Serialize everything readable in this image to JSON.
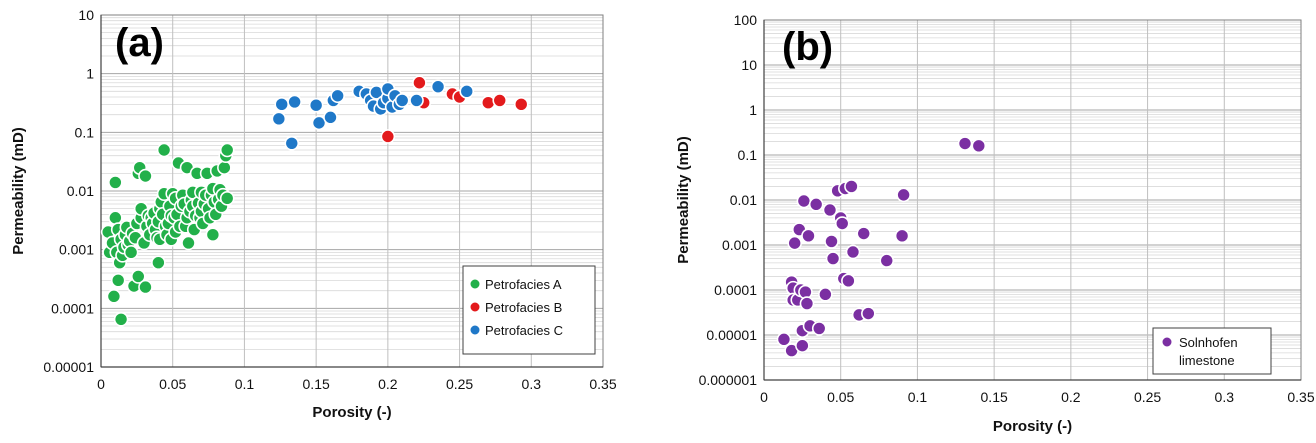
{
  "chart_data": [
    {
      "type": "scatter",
      "panel_label": "(a)",
      "xlabel": "Porosity (-)",
      "ylabel": "Permeability (mD)",
      "xlim": [
        0,
        0.35
      ],
      "ylim": [
        1e-05,
        10
      ],
      "yscale": "log",
      "grid": true,
      "legend_placement": "bottom-right",
      "xticks": [
        "0",
        "0.05",
        "0.1",
        "0.15",
        "0.2",
        "0.25",
        "0.3",
        "0.35"
      ],
      "yticks": [
        "0.00001",
        "0.0001",
        "0.001",
        "0.01",
        "0.1",
        "1",
        "10"
      ],
      "series": [
        {
          "name": "Petrofacies A",
          "color": "#22b04a",
          "points": [
            [
              0.005,
              0.002
            ],
            [
              0.006,
              0.0009
            ],
            [
              0.008,
              0.0013
            ],
            [
              0.009,
              0.00016
            ],
            [
              0.01,
              0.0035
            ],
            [
              0.01,
              0.014
            ],
            [
              0.011,
              0.0009
            ],
            [
              0.012,
              0.0003
            ],
            [
              0.012,
              0.0022
            ],
            [
              0.013,
              0.0006
            ],
            [
              0.014,
              0.0015
            ],
            [
              0.014,
              6.5e-05
            ],
            [
              0.015,
              0.0008
            ],
            [
              0.016,
              0.0011
            ],
            [
              0.017,
              0.0018
            ],
            [
              0.018,
              0.0024
            ],
            [
              0.019,
              0.0012
            ],
            [
              0.02,
              0.0014
            ],
            [
              0.021,
              0.0009
            ],
            [
              0.022,
              0.0019
            ],
            [
              0.023,
              0.00024
            ],
            [
              0.024,
              0.0016
            ],
            [
              0.025,
              0.0028
            ],
            [
              0.026,
              0.02
            ],
            [
              0.026,
              0.00035
            ],
            [
              0.027,
              0.025
            ],
            [
              0.028,
              0.0035
            ],
            [
              0.028,
              0.005
            ],
            [
              0.03,
              0.0013
            ],
            [
              0.031,
              0.018
            ],
            [
              0.031,
              0.00023
            ],
            [
              0.032,
              0.0025
            ],
            [
              0.033,
              0.0038
            ],
            [
              0.034,
              0.0018
            ],
            [
              0.035,
              0.0035
            ],
            [
              0.036,
              0.0028
            ],
            [
              0.037,
              0.0042
            ],
            [
              0.038,
              0.0022
            ],
            [
              0.039,
              0.0016
            ],
            [
              0.04,
              0.0006
            ],
            [
              0.04,
              0.003
            ],
            [
              0.041,
              0.005
            ],
            [
              0.041,
              0.0015
            ],
            [
              0.042,
              0.0065
            ],
            [
              0.043,
              0.004
            ],
            [
              0.044,
              0.009
            ],
            [
              0.044,
              0.05
            ],
            [
              0.045,
              0.0025
            ],
            [
              0.046,
              0.0018
            ],
            [
              0.047,
              0.0028
            ],
            [
              0.048,
              0.0055
            ],
            [
              0.049,
              0.0038
            ],
            [
              0.049,
              0.0015
            ],
            [
              0.05,
              0.009
            ],
            [
              0.051,
              0.0035
            ],
            [
              0.052,
              0.002
            ],
            [
              0.052,
              0.0075
            ],
            [
              0.053,
              0.004
            ],
            [
              0.054,
              0.03
            ],
            [
              0.055,
              0.0025
            ],
            [
              0.056,
              0.0055
            ],
            [
              0.057,
              0.0085
            ],
            [
              0.058,
              0.006
            ],
            [
              0.059,
              0.0025
            ],
            [
              0.06,
              0.0035
            ],
            [
              0.06,
              0.025
            ],
            [
              0.061,
              0.0013
            ],
            [
              0.062,
              0.0045
            ],
            [
              0.063,
              0.007
            ],
            [
              0.064,
              0.0055
            ],
            [
              0.064,
              0.0095
            ],
            [
              0.065,
              0.0022
            ],
            [
              0.066,
              0.0038
            ],
            [
              0.067,
              0.02
            ],
            [
              0.068,
              0.0062
            ],
            [
              0.069,
              0.0035
            ],
            [
              0.07,
              0.0095
            ],
            [
              0.07,
              0.0045
            ],
            [
              0.071,
              0.0028
            ],
            [
              0.072,
              0.006
            ],
            [
              0.073,
              0.0085
            ],
            [
              0.074,
              0.02
            ],
            [
              0.075,
              0.005
            ],
            [
              0.076,
              0.0035
            ],
            [
              0.077,
              0.0085
            ],
            [
              0.078,
              0.0018
            ],
            [
              0.078,
              0.011
            ],
            [
              0.079,
              0.0065
            ],
            [
              0.08,
              0.004
            ],
            [
              0.081,
              0.022
            ],
            [
              0.082,
              0.0072
            ],
            [
              0.083,
              0.0105
            ],
            [
              0.084,
              0.0055
            ],
            [
              0.085,
              0.0085
            ],
            [
              0.086,
              0.025
            ],
            [
              0.087,
              0.04
            ],
            [
              0.088,
              0.05
            ],
            [
              0.088,
              0.0075
            ]
          ]
        },
        {
          "name": "Petrofacies B",
          "color": "#e31a1c",
          "points": [
            [
              0.2,
              0.085
            ],
            [
              0.222,
              0.7
            ],
            [
              0.225,
              0.32
            ],
            [
              0.245,
              0.45
            ],
            [
              0.25,
              0.4
            ],
            [
              0.255,
              0.5
            ],
            [
              0.27,
              0.32
            ],
            [
              0.278,
              0.35
            ],
            [
              0.293,
              0.3
            ]
          ]
        },
        {
          "name": "Petrofacies C",
          "color": "#1f78c8",
          "points": [
            [
              0.124,
              0.17
            ],
            [
              0.126,
              0.3
            ],
            [
              0.133,
              0.065
            ],
            [
              0.135,
              0.33
            ],
            [
              0.15,
              0.29
            ],
            [
              0.152,
              0.145
            ],
            [
              0.16,
              0.18
            ],
            [
              0.162,
              0.35
            ],
            [
              0.165,
              0.42
            ],
            [
              0.18,
              0.5
            ],
            [
              0.185,
              0.45
            ],
            [
              0.188,
              0.35
            ],
            [
              0.19,
              0.28
            ],
            [
              0.192,
              0.48
            ],
            [
              0.195,
              0.25
            ],
            [
              0.197,
              0.32
            ],
            [
              0.2,
              0.38
            ],
            [
              0.2,
              0.55
            ],
            [
              0.203,
              0.27
            ],
            [
              0.205,
              0.42
            ],
            [
              0.208,
              0.3
            ],
            [
              0.21,
              0.35
            ],
            [
              0.22,
              0.35
            ],
            [
              0.235,
              0.6
            ],
            [
              0.255,
              0.5
            ]
          ]
        }
      ]
    },
    {
      "type": "scatter",
      "panel_label": "(b)",
      "xlabel": "Porosity (-)",
      "ylabel": "Permeability (mD)",
      "xlim": [
        0,
        0.35
      ],
      "ylim": [
        1e-06,
        100
      ],
      "yscale": "log",
      "grid": true,
      "legend_placement": "bottom-right",
      "xticks": [
        "0",
        "0.05",
        "0.1",
        "0.15",
        "0.2",
        "0.25",
        "0.3",
        "0.35"
      ],
      "yticks": [
        "0.000001",
        "0.00001",
        "0.0001",
        "0.001",
        "0.01",
        "0.1",
        "1",
        "10",
        "100"
      ],
      "series": [
        {
          "name": "Solnhofen limestone",
          "legend_lines": [
            "Solnhofen",
            "limestone"
          ],
          "color": "#7b2fa2",
          "points": [
            [
              0.013,
              8e-06
            ],
            [
              0.018,
              4.5e-06
            ],
            [
              0.018,
              0.00015
            ],
            [
              0.019,
              0.00011
            ],
            [
              0.019,
              6e-05
            ],
            [
              0.02,
              0.0011
            ],
            [
              0.022,
              6e-05
            ],
            [
              0.023,
              0.0022
            ],
            [
              0.024,
              0.0001
            ],
            [
              0.025,
              1.25e-05
            ],
            [
              0.025,
              5.8e-06
            ],
            [
              0.026,
              0.0095
            ],
            [
              0.027,
              9e-05
            ],
            [
              0.028,
              5e-05
            ],
            [
              0.029,
              0.0016
            ],
            [
              0.03,
              1.6e-05
            ],
            [
              0.034,
              0.008
            ],
            [
              0.036,
              1.4e-05
            ],
            [
              0.04,
              8e-05
            ],
            [
              0.043,
              0.006
            ],
            [
              0.044,
              0.0012
            ],
            [
              0.045,
              0.0005
            ],
            [
              0.048,
              0.016
            ],
            [
              0.05,
              0.004
            ],
            [
              0.051,
              0.003
            ],
            [
              0.052,
              0.00018
            ],
            [
              0.053,
              0.018
            ],
            [
              0.055,
              0.00016
            ],
            [
              0.057,
              0.02
            ],
            [
              0.058,
              0.0007
            ],
            [
              0.062,
              2.8e-05
            ],
            [
              0.065,
              0.0018
            ],
            [
              0.068,
              3e-05
            ],
            [
              0.08,
              0.00045
            ],
            [
              0.09,
              0.0016
            ],
            [
              0.091,
              0.013
            ],
            [
              0.131,
              0.18
            ],
            [
              0.14,
              0.16
            ]
          ]
        }
      ]
    }
  ]
}
